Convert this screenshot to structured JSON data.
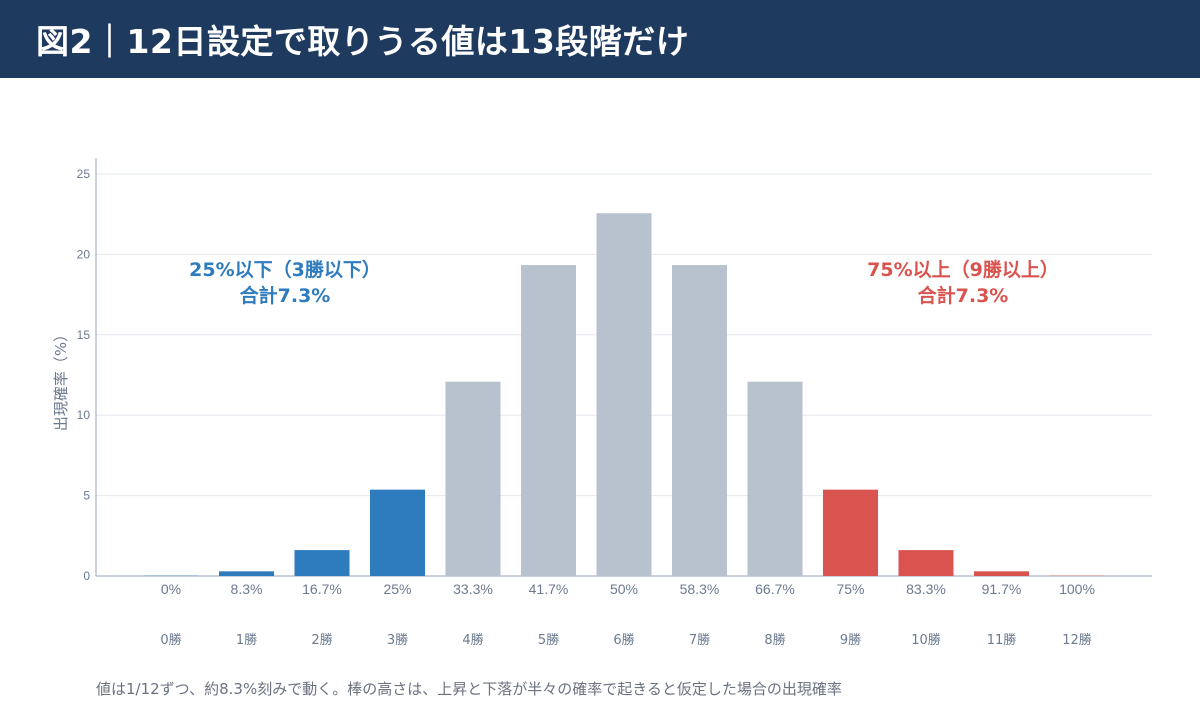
{
  "header": {
    "title": "図2｜12日設定で取りうる値は13段階だけ"
  },
  "footnote": "値は1/12ずつ、約8.3%刻みで動く。棒の高さは、上昇と下落が半々の確率で起きると仮定した場合の出現確率",
  "colors": {
    "header_bg": "#1f3a5f",
    "low": "#2e7bbd",
    "mid": "#b8c2ce",
    "high": "#d9534f",
    "grid": "#e3e8ee",
    "axis": "#6b7a90"
  },
  "chart_data": {
    "type": "bar",
    "categories": [
      "0%",
      "8.3%",
      "16.7%",
      "25%",
      "33.3%",
      "41.7%",
      "50%",
      "58.3%",
      "66.7%",
      "75%",
      "83.3%",
      "91.7%",
      "100%"
    ],
    "win_labels": [
      "0勝",
      "1勝",
      "2勝",
      "3勝",
      "4勝",
      "5勝",
      "6勝",
      "7勝",
      "8勝",
      "9勝",
      "10勝",
      "11勝",
      "12勝"
    ],
    "values": [
      0.02,
      0.29,
      1.61,
      5.37,
      12.08,
      19.34,
      22.56,
      19.34,
      12.08,
      5.37,
      1.61,
      0.29,
      0.02
    ],
    "groups": [
      "low",
      "low",
      "low",
      "low",
      "mid",
      "mid",
      "mid",
      "mid",
      "mid",
      "high",
      "high",
      "high",
      "high"
    ],
    "ylabel": "出現確率（%）",
    "yticks": [
      0,
      5,
      10,
      15,
      20,
      25
    ],
    "ylim": [
      0,
      26
    ],
    "grid": true,
    "annotations": [
      {
        "group": "low",
        "lines": [
          "25%以下（3勝以下）",
          "合計7.3%"
        ]
      },
      {
        "group": "high",
        "lines": [
          "75%以上（9勝以上）",
          "合計7.3%"
        ]
      }
    ]
  }
}
